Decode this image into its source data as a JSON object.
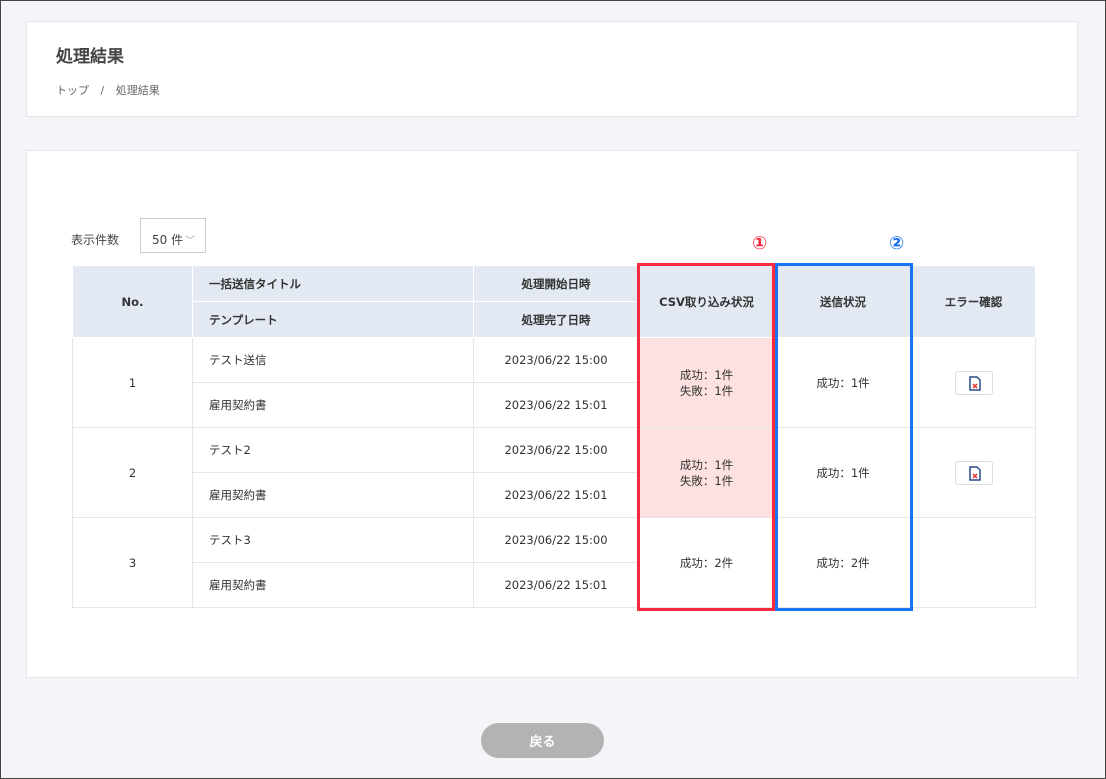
{
  "header": {
    "title": "処理結果",
    "breadcrumb": [
      "トップ",
      "/",
      "処理結果"
    ]
  },
  "controls": {
    "count_label": "表示件数",
    "count_value": "50 件"
  },
  "table": {
    "headers": {
      "no": "No.",
      "title": "一括送信タイトル",
      "template": "テンプレート",
      "start": "処理開始日時",
      "end": "処理完了日時",
      "csv": "CSV取り込み状況",
      "send": "送信状況",
      "error": "エラー確認"
    },
    "rows": [
      {
        "no": "1",
        "title": "テスト送信",
        "template": "雇用契約書",
        "start": "2023/06/22 15:00",
        "end": "2023/06/22 15:01",
        "csv": [
          "成功：1件",
          "失敗：1件"
        ],
        "send": "成功：1件",
        "has_error": true
      },
      {
        "no": "2",
        "title": "テスト2",
        "template": "雇用契約書",
        "start": "2023/06/22 15:00",
        "end": "2023/06/22 15:01",
        "csv": [
          "成功：1件",
          "失敗：1件"
        ],
        "send": "成功：1件",
        "has_error": true
      },
      {
        "no": "3",
        "title": "テスト3",
        "template": "雇用契約書",
        "start": "2023/06/22 15:00",
        "end": "2023/06/22 15:01",
        "csv": [
          "成功：2件",
          ""
        ],
        "send": "成功：2件",
        "has_error": false
      }
    ]
  },
  "annotations": {
    "one": "①",
    "two": "②",
    "one_color": "#ff2a3d",
    "two_color": "#1a73f0"
  },
  "footer": {
    "back_label": "戻る"
  }
}
